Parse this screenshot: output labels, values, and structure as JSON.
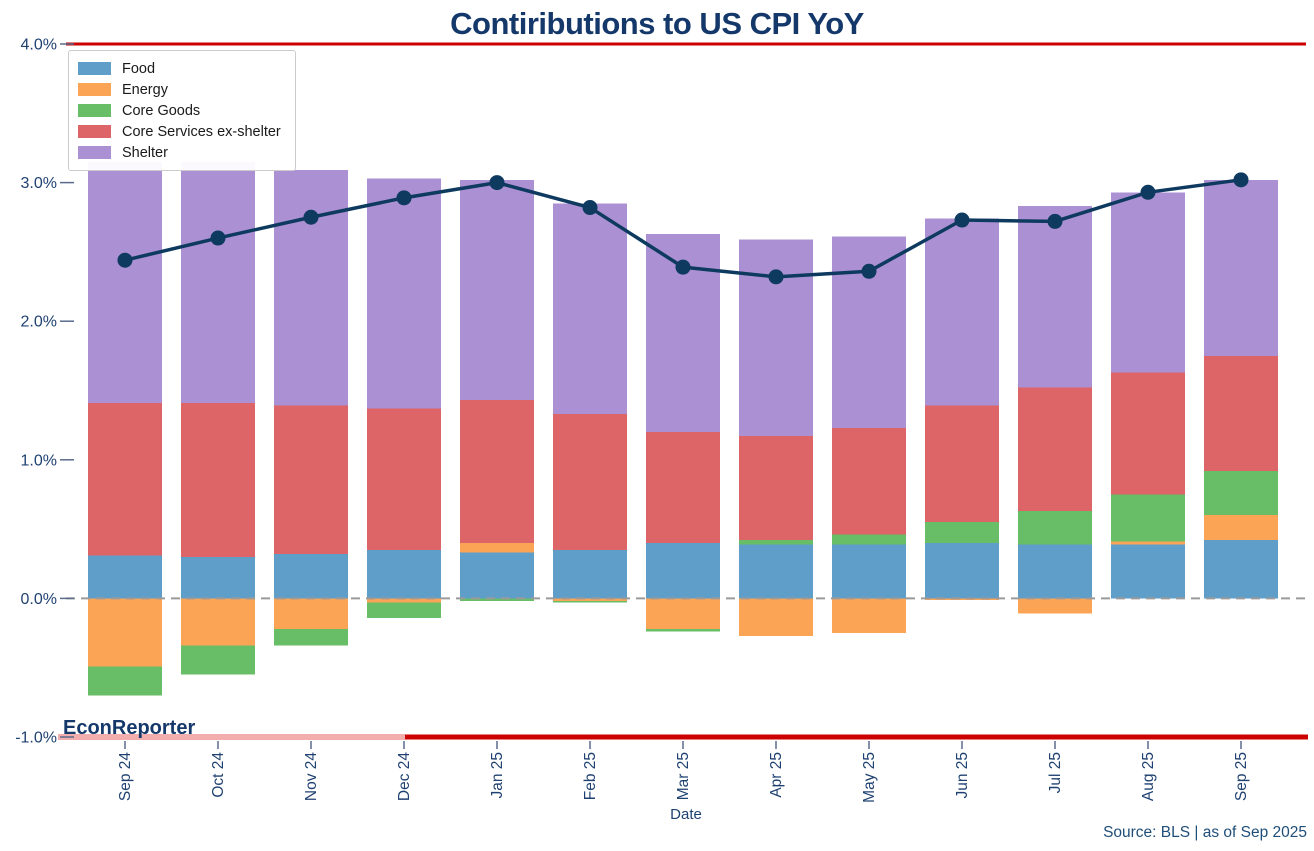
{
  "title": "Contiributions to US CPI YoY",
  "watermark": "EconReporter",
  "source_note": "Source: BLS | as of Sep 2025",
  "legend": {
    "items": [
      "Food",
      "Energy",
      "Core Goods",
      "Core Services ex-shelter",
      "Shelter"
    ]
  },
  "colors": {
    "food": "#5F9EC9",
    "energy": "#FCA455",
    "core_goods": "#68BE66",
    "core_services": "#DD6467",
    "shelter": "#AB90D3",
    "line": "#0E3A5F",
    "accent_red": "#CC0000",
    "logo_underline": "#F2AEAD",
    "zero_line": "#9A9A9A",
    "tick_mark": "#5A6B8C",
    "tick_text": "#1F4171",
    "title_text": "#15386B",
    "source_text": "#1F4E79"
  },
  "chart_data": {
    "type": "bar",
    "subtype": "stacked-bars-with-total-line",
    "title": "Contiributions to US CPI YoY",
    "xlabel": "Date",
    "ylabel": "",
    "ylim": [
      -1.0,
      4.0
    ],
    "grid": false,
    "legend_position": "upper left",
    "categories": [
      "Sep 24",
      "Oct 24",
      "Nov 24",
      "Dec 24",
      "Jan 25",
      "Feb 25",
      "Mar 25",
      "Apr 25",
      "May 25",
      "Jun 25",
      "Jul 25",
      "Aug 25",
      "Sep 25"
    ],
    "series": [
      {
        "name": "Food",
        "key": "food",
        "color": "#5F9EC9",
        "values": [
          0.31,
          0.3,
          0.32,
          0.35,
          0.33,
          0.35,
          0.4,
          0.39,
          0.39,
          0.4,
          0.39,
          0.39,
          0.42
        ]
      },
      {
        "name": "Energy",
        "key": "energy",
        "color": "#FCA455",
        "values": [
          -0.49,
          -0.34,
          -0.22,
          -0.03,
          0.07,
          -0.02,
          -0.22,
          -0.27,
          -0.25,
          -0.01,
          -0.11,
          0.02,
          0.18
        ]
      },
      {
        "name": "Core Goods",
        "key": "core_goods",
        "color": "#68BE66",
        "values": [
          -0.21,
          -0.21,
          -0.12,
          -0.11,
          -0.02,
          -0.01,
          -0.02,
          0.03,
          0.07,
          0.15,
          0.24,
          0.34,
          0.32
        ]
      },
      {
        "name": "Core Services ex-shelter",
        "key": "core_services",
        "color": "#DD6467",
        "values": [
          1.1,
          1.11,
          1.07,
          1.02,
          1.03,
          0.98,
          0.8,
          0.75,
          0.77,
          0.84,
          0.89,
          0.88,
          0.83
        ]
      },
      {
        "name": "Shelter",
        "key": "shelter",
        "color": "#AB90D3",
        "values": [
          1.74,
          1.74,
          1.7,
          1.66,
          1.59,
          1.52,
          1.43,
          1.42,
          1.38,
          1.35,
          1.31,
          1.3,
          1.27
        ]
      },
      {
        "name": "CPI YoY",
        "key": "cpi_total",
        "type": "line",
        "color": "#0E3A5F",
        "values": [
          2.44,
          2.6,
          2.75,
          2.89,
          3.0,
          2.82,
          2.39,
          2.32,
          2.36,
          2.73,
          2.72,
          2.93,
          3.02
        ]
      }
    ],
    "yticks": [
      {
        "label": "4.0%",
        "value": 4.0
      },
      {
        "label": "3.0%",
        "value": 3.0
      },
      {
        "label": "2.0%",
        "value": 2.0
      },
      {
        "label": "1.0%",
        "value": 1.0
      },
      {
        "label": "0.0%",
        "value": 0.0
      },
      {
        "label": "-1.0%",
        "value": -1.0
      }
    ],
    "hlines": [
      {
        "value": 4.0,
        "style": "solid",
        "color": "#CC0000"
      },
      {
        "value": 0.0,
        "style": "dashed",
        "color": "#9A9A9A"
      },
      {
        "value": -1.0,
        "style": "solid",
        "color": "#CC0000"
      }
    ]
  }
}
